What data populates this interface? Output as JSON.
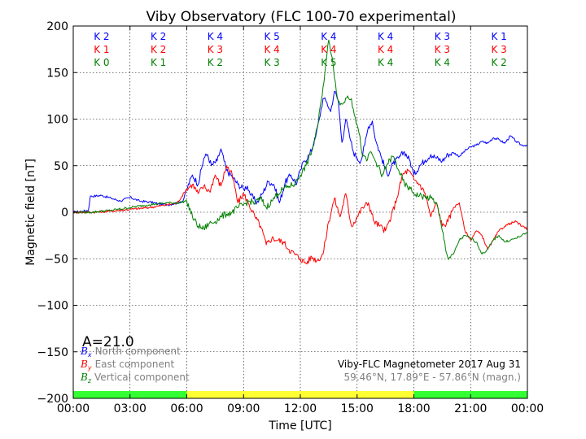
{
  "chart_data": {
    "type": "line",
    "title": "Viby Observatory (FLC 100-70 experimental)",
    "xlabel": "Time [UTC]",
    "ylabel": "Magnetic field [nT]",
    "xlim": [
      0,
      24
    ],
    "ylim": [
      -200,
      200
    ],
    "x_ticks": [
      {
        "value": 0,
        "label": "00:00"
      },
      {
        "value": 3,
        "label": "03:00"
      },
      {
        "value": 6,
        "label": "06:00"
      },
      {
        "value": 9,
        "label": "09:00"
      },
      {
        "value": 12,
        "label": "12:00"
      },
      {
        "value": 15,
        "label": "15:00"
      },
      {
        "value": 18,
        "label": "18:00"
      },
      {
        "value": 21,
        "label": "21:00"
      },
      {
        "value": 24,
        "label": "00:00"
      }
    ],
    "y_ticks": [
      {
        "value": 200,
        "label": "200"
      },
      {
        "value": 150,
        "label": "150"
      },
      {
        "value": 100,
        "label": "100"
      },
      {
        "value": 50,
        "label": "50"
      },
      {
        "value": 0,
        "label": "0"
      },
      {
        "value": -50,
        "label": "−50"
      },
      {
        "value": -100,
        "label": "−100"
      },
      {
        "value": -150,
        "label": "−150"
      },
      {
        "value": -200,
        "label": "−200"
      }
    ],
    "grid": true,
    "legend": "bottom-left",
    "series": [
      {
        "name": "North component",
        "symbol": "B",
        "subscript": "x",
        "color": "#0000ff",
        "x": [
          0,
          0.5,
          0.8,
          0.9,
          1.5,
          2,
          2.5,
          3,
          3.5,
          4,
          4.5,
          5,
          5.5,
          5.8,
          6,
          6.3,
          6.6,
          6.9,
          7.1,
          7.3,
          7.6,
          7.8,
          8.1,
          8.4,
          8.7,
          9.0,
          9.2,
          9.4,
          9.7,
          10.0,
          10.3,
          10.6,
          10.9,
          11.2,
          11.5,
          11.8,
          12.0,
          12.2,
          12.5,
          12.8,
          13.0,
          13.2,
          13.4,
          13.6,
          13.8,
          14.0,
          14.2,
          14.4,
          14.6,
          14.8,
          15.0,
          15.2,
          15.4,
          15.6,
          15.8,
          16.0,
          16.3,
          16.6,
          16.9,
          17.2,
          17.5,
          17.8,
          18.0,
          18.3,
          18.6,
          18.9,
          19.2,
          19.5,
          19.8,
          20.1,
          20.4,
          20.7,
          21.0,
          21.3,
          21.6,
          21.9,
          22.2,
          22.5,
          22.8,
          23.1,
          23.4,
          23.7,
          24.0
        ],
        "values": [
          0,
          1,
          2,
          17,
          18,
          15,
          12,
          16,
          12,
          11,
          9,
          8,
          10,
          12,
          25,
          40,
          30,
          58,
          62,
          50,
          55,
          68,
          45,
          38,
          30,
          25,
          28,
          18,
          10,
          20,
          33,
          30,
          10,
          32,
          40,
          30,
          45,
          55,
          62,
          80,
          100,
          122,
          118,
          108,
          130,
          120,
          75,
          100,
          82,
          65,
          58,
          55,
          72,
          92,
          98,
          76,
          58,
          40,
          52,
          58,
          65,
          55,
          40,
          50,
          56,
          62,
          58,
          55,
          62,
          64,
          60,
          66,
          70,
          72,
          76,
          74,
          80,
          78,
          74,
          82,
          76,
          72,
          72
        ]
      },
      {
        "name": "East component",
        "symbol": "B",
        "subscript": "y",
        "color": "#ff0000",
        "x": [
          0,
          1,
          2,
          3,
          4,
          5,
          5.5,
          6,
          6.3,
          6.6,
          6.9,
          7.2,
          7.5,
          7.8,
          8.1,
          8.4,
          8.7,
          9.0,
          9.3,
          9.6,
          9.9,
          10.2,
          10.5,
          10.8,
          11.1,
          11.4,
          11.7,
          12.0,
          12.3,
          12.6,
          12.9,
          13.2,
          13.5,
          13.8,
          14.1,
          14.4,
          14.7,
          15.0,
          15.3,
          15.6,
          15.9,
          16.2,
          16.5,
          16.8,
          17.1,
          17.4,
          17.7,
          18.0,
          18.3,
          18.6,
          18.9,
          19.2,
          19.5,
          19.8,
          20.1,
          20.4,
          20.7,
          21.0,
          21.3,
          21.6,
          21.9,
          22.2,
          22.5,
          22.8,
          23.1,
          23.4,
          23.7,
          24.0
        ],
        "values": [
          0,
          0,
          1,
          3,
          5,
          8,
          10,
          25,
          30,
          20,
          28,
          22,
          40,
          28,
          50,
          40,
          10,
          20,
          8,
          -5,
          -15,
          -35,
          -28,
          -30,
          -32,
          -40,
          -45,
          -50,
          -55,
          -48,
          -52,
          -45,
          -10,
          15,
          -5,
          20,
          -15,
          -5,
          5,
          10,
          -10,
          -15,
          -20,
          -5,
          15,
          40,
          45,
          35,
          30,
          20,
          -5,
          10,
          -15,
          -10,
          5,
          10,
          -20,
          -30,
          -20,
          -25,
          -40,
          -30,
          -20,
          -15,
          -12,
          -10,
          -15,
          -18
        ]
      },
      {
        "name": "Vertical component",
        "symbol": "B",
        "subscript": "z",
        "color": "#008000",
        "x": [
          0,
          1,
          2,
          3,
          4,
          5,
          5.5,
          6,
          6.3,
          6.6,
          6.9,
          7.2,
          7.5,
          7.8,
          8.1,
          8.4,
          8.7,
          9.0,
          9.3,
          9.6,
          9.9,
          10.2,
          10.5,
          10.8,
          11.1,
          11.4,
          11.7,
          12.0,
          12.3,
          12.6,
          12.9,
          13.1,
          13.3,
          13.5,
          13.7,
          13.9,
          14.1,
          14.3,
          14.5,
          14.7,
          14.9,
          15.1,
          15.3,
          15.5,
          15.7,
          15.9,
          16.1,
          16.3,
          16.6,
          16.9,
          17.2,
          17.5,
          17.8,
          18.0,
          18.3,
          18.6,
          18.9,
          19.2,
          19.5,
          19.8,
          20.1,
          20.4,
          20.7,
          21.0,
          21.3,
          21.6,
          21.9,
          22.2,
          22.5,
          22.8,
          23.1,
          23.4,
          23.7,
          24.0
        ],
        "values": [
          0,
          0,
          2,
          5,
          8,
          10,
          10,
          12,
          -5,
          -15,
          -18,
          -12,
          -10,
          -5,
          -2,
          0,
          5,
          8,
          12,
          10,
          15,
          5,
          12,
          20,
          25,
          28,
          30,
          40,
          50,
          65,
          90,
          120,
          150,
          185,
          165,
          130,
          115,
          118,
          125,
          122,
          102,
          85,
          60,
          55,
          65,
          58,
          50,
          38,
          52,
          60,
          45,
          30,
          25,
          20,
          18,
          16,
          15,
          10,
          -20,
          -50,
          -45,
          -30,
          -25,
          -28,
          -32,
          -45,
          -40,
          -30,
          -25,
          -32,
          -30,
          -28,
          -25,
          -22
        ]
      }
    ],
    "k_indices": {
      "north": [
        "K 2",
        "K 2",
        "K 4",
        "K 5",
        "K 4",
        "K 4",
        "K 3",
        "K 1"
      ],
      "east": [
        "K 1",
        "K 2",
        "K 3",
        "K 4",
        "K 4",
        "K 4",
        "K 3",
        "K 3"
      ],
      "vertical": [
        "K 0",
        "K 1",
        "K 2",
        "K 3",
        "K 5",
        "K 4",
        "K 4",
        "K 2"
      ]
    },
    "a_index": "A=21.0",
    "info_line_1": "Viby-FLC Magnetometer 2017 Aug 31",
    "info_line_2": "59.46°N, 17.89°E - 57.86°N (magn.)",
    "daylight_bar": [
      {
        "from": 0,
        "to": 6,
        "color": "#33ff33"
      },
      {
        "from": 6,
        "to": 18,
        "color": "#ffff33"
      },
      {
        "from": 18,
        "to": 24,
        "color": "#33ff33"
      }
    ]
  }
}
